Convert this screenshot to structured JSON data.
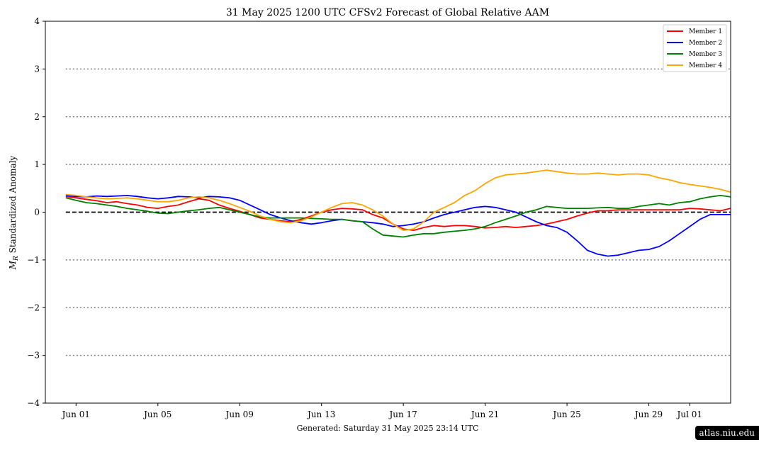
{
  "chart_data": {
    "type": "line",
    "title": "31  May  2025 1200 UTC   CFSv2 Forecast of Global Relative AAM",
    "ylabel": "M_R Standardized Anomaly",
    "ylabel_main": "M",
    "ylabel_sub": "R",
    "ylabel_rest": " Standardized Anomaly",
    "footer": "Generated: Saturday  31  May  2025  23:14 UTC",
    "xlim": [
      -0.5,
      33
    ],
    "ylim": [
      -4,
      4
    ],
    "x_tick_values": [
      1,
      5,
      9,
      13,
      17,
      21,
      25,
      29,
      31
    ],
    "x_tick_labels": [
      "Jun 01",
      "Jun 05",
      "Jun 09",
      "Jun 13",
      "Jun 17",
      "Jun 21",
      "Jun 25",
      "Jun 29",
      "Jul 01"
    ],
    "y_ticks": [
      4,
      3,
      2,
      1,
      0,
      -1,
      -2,
      -3,
      -4
    ],
    "y_tick_labels": [
      "4",
      "3",
      "2",
      "1",
      "0",
      "−1",
      "−2",
      "−3",
      "−4"
    ],
    "reference_lines": [
      {
        "y": 3,
        "style": "dotted"
      },
      {
        "y": 2,
        "style": "dotted"
      },
      {
        "y": 1,
        "style": "dotted"
      },
      {
        "y": 0,
        "style": "dashed"
      },
      {
        "y": -1,
        "style": "dotted"
      },
      {
        "y": -2,
        "style": "dotted"
      },
      {
        "y": -3,
        "style": "dotted"
      }
    ],
    "reference_x_range": [
      0.5,
      33
    ],
    "legend_position": "top-right",
    "series": [
      {
        "name": "Member 1",
        "color": "#ff0000",
        "points": [
          [
            0.5,
            0.33
          ],
          [
            1,
            0.3
          ],
          [
            1.5,
            0.27
          ],
          [
            2,
            0.24
          ],
          [
            2.5,
            0.2
          ],
          [
            3,
            0.22
          ],
          [
            3.5,
            0.18
          ],
          [
            4,
            0.15
          ],
          [
            4.5,
            0.1
          ],
          [
            5,
            0.08
          ],
          [
            5.5,
            0.12
          ],
          [
            6,
            0.15
          ],
          [
            6.5,
            0.22
          ],
          [
            7,
            0.28
          ],
          [
            7.5,
            0.25
          ],
          [
            8,
            0.15
          ],
          [
            8.5,
            0.08
          ],
          [
            9,
            0.02
          ],
          [
            9.5,
            -0.05
          ],
          [
            10,
            -0.12
          ],
          [
            10.5,
            -0.15
          ],
          [
            11,
            -0.18
          ],
          [
            11.5,
            -0.2
          ],
          [
            12,
            -0.15
          ],
          [
            12.5,
            -0.08
          ],
          [
            13,
            0.0
          ],
          [
            13.5,
            0.05
          ],
          [
            14,
            0.08
          ],
          [
            14.5,
            0.07
          ],
          [
            15,
            0.05
          ],
          [
            15.5,
            -0.05
          ],
          [
            16,
            -0.12
          ],
          [
            16.5,
            -0.25
          ],
          [
            17,
            -0.35
          ],
          [
            17.5,
            -0.38
          ],
          [
            18,
            -0.32
          ],
          [
            18.5,
            -0.28
          ],
          [
            19,
            -0.3
          ],
          [
            19.5,
            -0.28
          ],
          [
            20,
            -0.28
          ],
          [
            20.5,
            -0.3
          ],
          [
            21,
            -0.33
          ],
          [
            21.5,
            -0.32
          ],
          [
            22,
            -0.3
          ],
          [
            22.5,
            -0.32
          ],
          [
            23,
            -0.3
          ],
          [
            23.5,
            -0.28
          ],
          [
            24,
            -0.25
          ],
          [
            24.5,
            -0.2
          ],
          [
            25,
            -0.15
          ],
          [
            25.5,
            -0.08
          ],
          [
            26,
            -0.02
          ],
          [
            26.5,
            0.03
          ],
          [
            27,
            0.03
          ],
          [
            27.5,
            0.05
          ],
          [
            28,
            0.05
          ],
          [
            28.5,
            0.05
          ],
          [
            29,
            0.05
          ],
          [
            29.5,
            0.05
          ],
          [
            30,
            0.05
          ],
          [
            30.5,
            0.05
          ],
          [
            31,
            0.08
          ],
          [
            31.5,
            0.07
          ],
          [
            32,
            0.05
          ],
          [
            32.5,
            0.03
          ],
          [
            33,
            0.08
          ]
        ]
      },
      {
        "name": "Member 2",
        "color": "#0000ff",
        "points": [
          [
            0.5,
            0.35
          ],
          [
            1,
            0.33
          ],
          [
            1.5,
            0.32
          ],
          [
            2,
            0.34
          ],
          [
            2.5,
            0.33
          ],
          [
            3,
            0.34
          ],
          [
            3.5,
            0.35
          ],
          [
            4,
            0.33
          ],
          [
            4.5,
            0.3
          ],
          [
            5,
            0.28
          ],
          [
            5.5,
            0.3
          ],
          [
            6,
            0.33
          ],
          [
            6.5,
            0.32
          ],
          [
            7,
            0.3
          ],
          [
            7.5,
            0.33
          ],
          [
            8,
            0.32
          ],
          [
            8.5,
            0.3
          ],
          [
            9,
            0.25
          ],
          [
            9.5,
            0.15
          ],
          [
            10,
            0.05
          ],
          [
            10.5,
            -0.05
          ],
          [
            11,
            -0.12
          ],
          [
            11.5,
            -0.18
          ],
          [
            12,
            -0.22
          ],
          [
            12.5,
            -0.25
          ],
          [
            13,
            -0.22
          ],
          [
            13.5,
            -0.18
          ],
          [
            14,
            -0.15
          ],
          [
            14.5,
            -0.18
          ],
          [
            15,
            -0.2
          ],
          [
            15.5,
            -0.22
          ],
          [
            16,
            -0.25
          ],
          [
            16.5,
            -0.3
          ],
          [
            17,
            -0.28
          ],
          [
            17.5,
            -0.25
          ],
          [
            18,
            -0.2
          ],
          [
            18.5,
            -0.12
          ],
          [
            19,
            -0.05
          ],
          [
            19.5,
            0.0
          ],
          [
            20,
            0.05
          ],
          [
            20.5,
            0.1
          ],
          [
            21,
            0.12
          ],
          [
            21.5,
            0.1
          ],
          [
            22,
            0.05
          ],
          [
            22.5,
            0.0
          ],
          [
            23,
            -0.1
          ],
          [
            23.5,
            -0.2
          ],
          [
            24,
            -0.28
          ],
          [
            24.5,
            -0.32
          ],
          [
            25,
            -0.42
          ],
          [
            25.5,
            -0.6
          ],
          [
            26,
            -0.8
          ],
          [
            26.5,
            -0.88
          ],
          [
            27,
            -0.92
          ],
          [
            27.5,
            -0.9
          ],
          [
            28,
            -0.85
          ],
          [
            28.5,
            -0.8
          ],
          [
            29,
            -0.78
          ],
          [
            29.5,
            -0.72
          ],
          [
            30,
            -0.6
          ],
          [
            30.5,
            -0.45
          ],
          [
            31,
            -0.3
          ],
          [
            31.5,
            -0.15
          ],
          [
            32,
            -0.05
          ],
          [
            32.5,
            -0.05
          ],
          [
            33,
            -0.05
          ]
        ]
      },
      {
        "name": "Member 3",
        "color": "#008000",
        "points": [
          [
            0.5,
            0.3
          ],
          [
            1,
            0.25
          ],
          [
            1.5,
            0.2
          ],
          [
            2,
            0.18
          ],
          [
            2.5,
            0.15
          ],
          [
            3,
            0.12
          ],
          [
            3.5,
            0.08
          ],
          [
            4,
            0.05
          ],
          [
            4.5,
            0.02
          ],
          [
            5,
            -0.02
          ],
          [
            5.5,
            -0.03
          ],
          [
            6,
            0.0
          ],
          [
            6.5,
            0.03
          ],
          [
            7,
            0.05
          ],
          [
            7.5,
            0.08
          ],
          [
            8,
            0.1
          ],
          [
            8.5,
            0.05
          ],
          [
            9,
            0.0
          ],
          [
            9.5,
            -0.05
          ],
          [
            10,
            -0.1
          ],
          [
            10.5,
            -0.12
          ],
          [
            11,
            -0.12
          ],
          [
            11.5,
            -0.12
          ],
          [
            12,
            -0.12
          ],
          [
            12.5,
            -0.13
          ],
          [
            13,
            -0.14
          ],
          [
            13.5,
            -0.15
          ],
          [
            14,
            -0.15
          ],
          [
            14.5,
            -0.18
          ],
          [
            15,
            -0.2
          ],
          [
            15.5,
            -0.35
          ],
          [
            16,
            -0.48
          ],
          [
            16.5,
            -0.5
          ],
          [
            17,
            -0.52
          ],
          [
            17.5,
            -0.48
          ],
          [
            18,
            -0.45
          ],
          [
            18.5,
            -0.45
          ],
          [
            19,
            -0.42
          ],
          [
            19.5,
            -0.4
          ],
          [
            20,
            -0.38
          ],
          [
            20.5,
            -0.35
          ],
          [
            21,
            -0.3
          ],
          [
            21.5,
            -0.22
          ],
          [
            22,
            -0.15
          ],
          [
            22.5,
            -0.08
          ],
          [
            23,
            0.0
          ],
          [
            23.5,
            0.05
          ],
          [
            24,
            0.12
          ],
          [
            24.5,
            0.1
          ],
          [
            25,
            0.08
          ],
          [
            25.5,
            0.08
          ],
          [
            26,
            0.08
          ],
          [
            26.5,
            0.09
          ],
          [
            27,
            0.1
          ],
          [
            27.5,
            0.08
          ],
          [
            28,
            0.08
          ],
          [
            28.5,
            0.12
          ],
          [
            29,
            0.15
          ],
          [
            29.5,
            0.18
          ],
          [
            30,
            0.15
          ],
          [
            30.5,
            0.2
          ],
          [
            31,
            0.22
          ],
          [
            31.5,
            0.28
          ],
          [
            32,
            0.32
          ],
          [
            32.5,
            0.35
          ],
          [
            33,
            0.32
          ]
        ]
      },
      {
        "name": "Member 4",
        "color": "#ffa500",
        "points": [
          [
            0.5,
            0.37
          ],
          [
            1,
            0.35
          ],
          [
            1.5,
            0.32
          ],
          [
            2,
            0.3
          ],
          [
            2.5,
            0.28
          ],
          [
            3,
            0.29
          ],
          [
            3.5,
            0.3
          ],
          [
            4,
            0.28
          ],
          [
            4.5,
            0.25
          ],
          [
            5,
            0.22
          ],
          [
            5.5,
            0.22
          ],
          [
            6,
            0.25
          ],
          [
            6.5,
            0.3
          ],
          [
            7,
            0.32
          ],
          [
            7.5,
            0.3
          ],
          [
            8,
            0.25
          ],
          [
            8.5,
            0.18
          ],
          [
            9,
            0.1
          ],
          [
            9.5,
            0.02
          ],
          [
            10,
            -0.08
          ],
          [
            10.5,
            -0.15
          ],
          [
            11,
            -0.2
          ],
          [
            11.5,
            -0.22
          ],
          [
            12,
            -0.18
          ],
          [
            12.5,
            -0.1
          ],
          [
            13,
            0.0
          ],
          [
            13.5,
            0.1
          ],
          [
            14,
            0.18
          ],
          [
            14.5,
            0.2
          ],
          [
            15,
            0.15
          ],
          [
            15.5,
            0.05
          ],
          [
            16,
            -0.08
          ],
          [
            16.5,
            -0.25
          ],
          [
            17,
            -0.38
          ],
          [
            17.5,
            -0.35
          ],
          [
            18,
            -0.2
          ],
          [
            18.5,
            0.0
          ],
          [
            19,
            0.1
          ],
          [
            19.5,
            0.2
          ],
          [
            20,
            0.35
          ],
          [
            20.5,
            0.45
          ],
          [
            21,
            0.6
          ],
          [
            21.5,
            0.72
          ],
          [
            22,
            0.78
          ],
          [
            22.5,
            0.8
          ],
          [
            23,
            0.82
          ],
          [
            23.5,
            0.85
          ],
          [
            24,
            0.88
          ],
          [
            24.5,
            0.85
          ],
          [
            25,
            0.82
          ],
          [
            25.5,
            0.8
          ],
          [
            26,
            0.8
          ],
          [
            26.5,
            0.82
          ],
          [
            27,
            0.8
          ],
          [
            27.5,
            0.78
          ],
          [
            28,
            0.8
          ],
          [
            28.5,
            0.8
          ],
          [
            29,
            0.78
          ],
          [
            29.5,
            0.72
          ],
          [
            30,
            0.68
          ],
          [
            30.5,
            0.62
          ],
          [
            31,
            0.58
          ],
          [
            31.5,
            0.55
          ],
          [
            32,
            0.52
          ],
          [
            32.5,
            0.48
          ],
          [
            33,
            0.42
          ]
        ]
      }
    ]
  },
  "watermark": "atlas.niu.edu"
}
